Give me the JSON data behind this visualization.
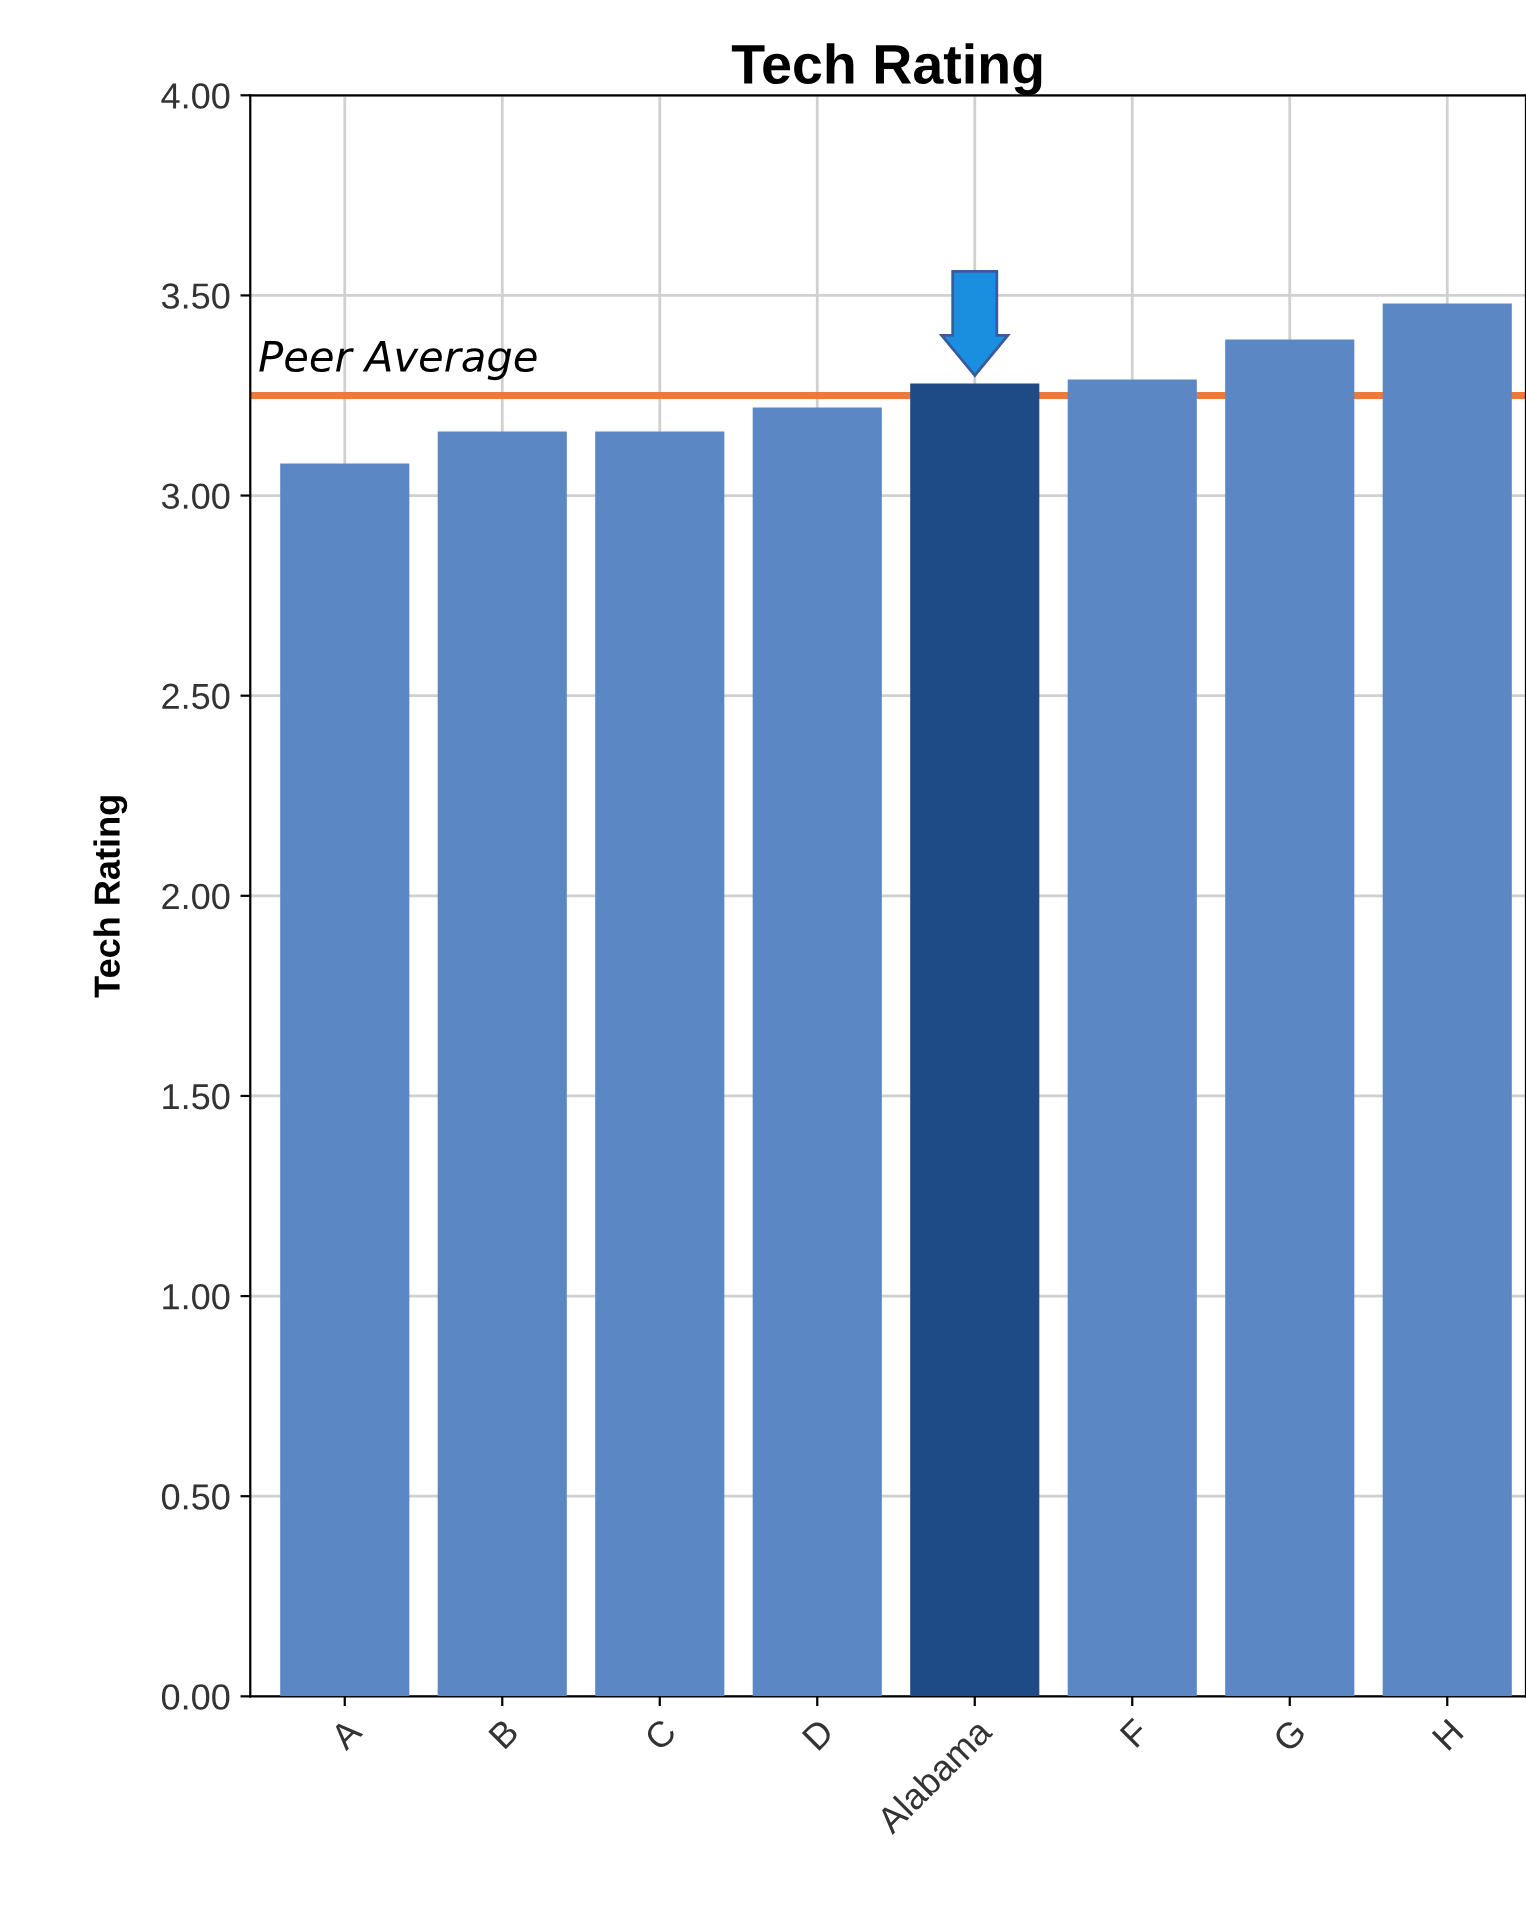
{
  "chart_data": {
    "type": "bar",
    "title": "Tech Rating",
    "ylabel": "Tech Rating",
    "categories": [
      "A",
      "B",
      "C",
      "D",
      "Alabama",
      "F",
      "G",
      "H"
    ],
    "values": [
      3.08,
      3.16,
      3.16,
      3.22,
      3.28,
      3.29,
      3.39,
      3.48
    ],
    "colors": [
      "#5b88c4",
      "#5b88c4",
      "#5b88c4",
      "#5b88c4",
      "#1e4a86",
      "#5b88c4",
      "#5b88c4",
      "#5b88c4"
    ],
    "ylim": [
      0,
      4
    ],
    "yticks": [
      {
        "value": 0,
        "label": "0.00"
      },
      {
        "value": 0.5,
        "label": "0.50"
      },
      {
        "value": 1,
        "label": "1.00"
      },
      {
        "value": 1.5,
        "label": "1.50"
      },
      {
        "value": 2,
        "label": "2.00"
      },
      {
        "value": 2.5,
        "label": "2.50"
      },
      {
        "value": 3,
        "label": "3.00"
      },
      {
        "value": 3.5,
        "label": "3.50"
      },
      {
        "value": 4,
        "label": "4.00"
      }
    ],
    "ref_lines": [
      {
        "axis": "y",
        "value": 3.25,
        "label": "Peer Average",
        "color": "#f07838"
      }
    ],
    "grid": true
  }
}
